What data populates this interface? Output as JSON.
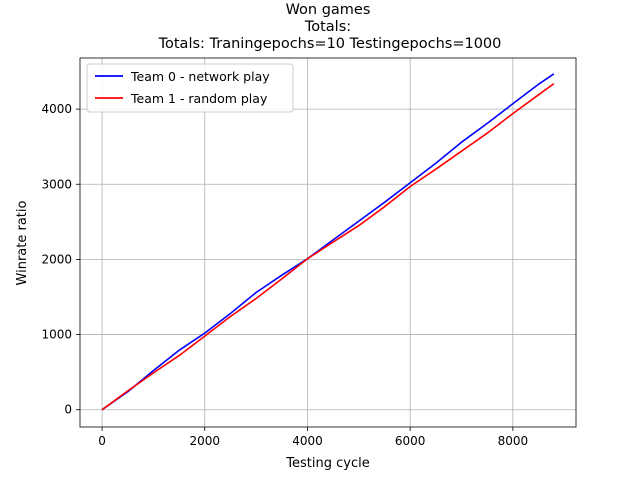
{
  "chart_data": {
    "type": "line",
    "title": "Won games",
    "subtitle": "Totals:",
    "subtitle2": "Totals: Traningepochs=10 Testingepochs=1000",
    "xlabel": "Testing cycle",
    "ylabel": "Winrate ratio",
    "xlim": [
      -430,
      9230
    ],
    "ylim": [
      -230,
      4680
    ],
    "x_ticks": [
      0,
      2000,
      4000,
      6000,
      8000
    ],
    "y_ticks": [
      0,
      1000,
      2000,
      3000,
      4000
    ],
    "grid": true,
    "legend_position": "top-left",
    "series": [
      {
        "name": "Team 0 - network play",
        "color": "#0000ff",
        "x": [
          0,
          500,
          1000,
          1500,
          2000,
          2500,
          3000,
          3500,
          4000,
          4500,
          5000,
          5500,
          6000,
          6500,
          7000,
          7500,
          8000,
          8500,
          8800
        ],
        "y": [
          0,
          240,
          520,
          790,
          1020,
          1280,
          1560,
          1790,
          2010,
          2260,
          2510,
          2760,
          3020,
          3280,
          3560,
          3810,
          4070,
          4330,
          4470
        ]
      },
      {
        "name": "Team 1 - random play",
        "color": "#ff0000",
        "x": [
          0,
          500,
          1000,
          1500,
          2000,
          2500,
          3000,
          3500,
          4000,
          4500,
          5000,
          5500,
          6000,
          6500,
          7000,
          7500,
          8000,
          8500,
          8800
        ],
        "y": [
          0,
          250,
          490,
          720,
          980,
          1240,
          1480,
          1740,
          2010,
          2230,
          2450,
          2700,
          2970,
          3200,
          3440,
          3680,
          3940,
          4190,
          4340
        ]
      }
    ]
  }
}
